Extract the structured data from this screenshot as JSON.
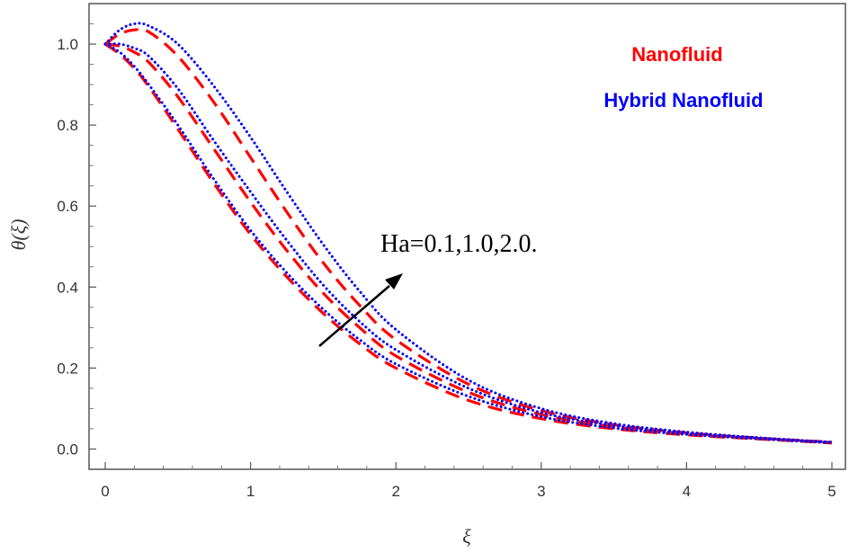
{
  "chart_data": {
    "type": "line",
    "xlabel": "ξ",
    "ylabel": "θ(ξ)",
    "xlim": [
      0,
      5
    ],
    "ylim": [
      -0.05,
      1.1
    ],
    "grid": false,
    "x_ticks": [
      "0",
      "1",
      "2",
      "3",
      "4",
      "5"
    ],
    "y_ticks": [
      "0.0",
      "0.2",
      "0.4",
      "0.6",
      "0.8",
      "1.0"
    ],
    "legend": [
      {
        "label": "Nanofluid",
        "color": "#ff0000",
        "style": "dashed"
      },
      {
        "label": "Hybrid Nanofluid",
        "color": "#0000ff",
        "style": "dotted"
      }
    ],
    "annotation": {
      "text": "Ha=0.1,1.0,2.0.",
      "arrow": "pointing up-right, direction of increasing Ha"
    },
    "x": [
      0,
      0.1,
      0.2,
      0.3,
      0.5,
      0.75,
      1.0,
      1.25,
      1.5,
      1.75,
      2.0,
      2.5,
      3.0,
      3.5,
      4.0,
      4.5,
      5.0
    ],
    "series": [
      {
        "name": "Nanofluid",
        "color": "#ff0000",
        "style": "dashed",
        "values": [
          1.0,
          0.975,
          0.94,
          0.895,
          0.79,
          0.655,
          0.53,
          0.425,
          0.335,
          0.26,
          0.2,
          0.12,
          0.075,
          0.05,
          0.035,
          0.025,
          0.015
        ]
      },
      {
        "name": "Nanofluid",
        "color": "#ff0000",
        "style": "dashed",
        "values": [
          1.0,
          0.995,
          0.98,
          0.955,
          0.87,
          0.74,
          0.61,
          0.49,
          0.385,
          0.3,
          0.23,
          0.14,
          0.085,
          0.055,
          0.038,
          0.026,
          0.016
        ]
      },
      {
        "name": "Nanofluid",
        "color": "#ff0000",
        "style": "dashed",
        "values": [
          1.0,
          1.025,
          1.035,
          1.03,
          0.97,
          0.855,
          0.72,
          0.585,
          0.46,
          0.355,
          0.27,
          0.16,
          0.095,
          0.06,
          0.04,
          0.027,
          0.017
        ]
      },
      {
        "name": "Hybrid Nanofluid",
        "color": "#0000ff",
        "style": "dotted",
        "values": [
          1.0,
          0.98,
          0.945,
          0.9,
          0.8,
          0.665,
          0.54,
          0.435,
          0.345,
          0.27,
          0.21,
          0.13,
          0.08,
          0.052,
          0.036,
          0.025,
          0.015
        ]
      },
      {
        "name": "Hybrid Nanofluid",
        "color": "#0000ff",
        "style": "dotted",
        "values": [
          1.0,
          1.0,
          0.99,
          0.97,
          0.89,
          0.76,
          0.635,
          0.515,
          0.405,
          0.315,
          0.245,
          0.15,
          0.09,
          0.058,
          0.039,
          0.027,
          0.016
        ]
      },
      {
        "name": "Hybrid Nanofluid",
        "color": "#0000ff",
        "style": "dotted",
        "values": [
          1.0,
          1.035,
          1.05,
          1.045,
          1.0,
          0.895,
          0.77,
          0.635,
          0.505,
          0.39,
          0.295,
          0.17,
          0.1,
          0.063,
          0.042,
          0.028,
          0.017
        ]
      }
    ]
  }
}
